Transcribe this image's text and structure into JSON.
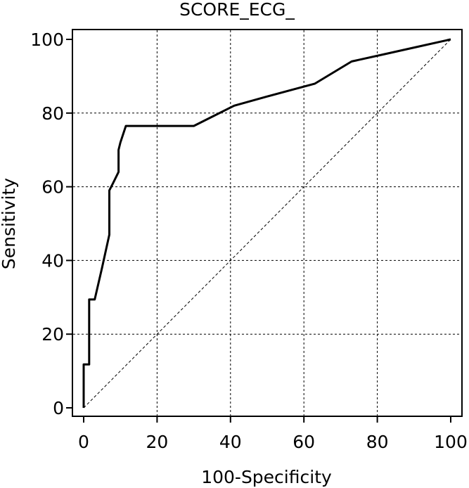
{
  "chart_data": {
    "type": "line",
    "title": "SCORE_ECG_",
    "xlabel": "100-Specificity",
    "ylabel": "Sensitivity",
    "xlim": [
      0,
      100
    ],
    "ylim": [
      0,
      100
    ],
    "x_ticks": [
      "0",
      "20",
      "40",
      "60",
      "80",
      "100"
    ],
    "y_ticks": [
      "0",
      "20",
      "40",
      "60",
      "80",
      "100"
    ],
    "grid": true,
    "series": [
      {
        "x": [
          0,
          0,
          1.5,
          1.5,
          3,
          5,
          7,
          7,
          8,
          9.5,
          9.5,
          10,
          11.5,
          30,
          35,
          41,
          50,
          63,
          73,
          82,
          91,
          100
        ],
        "y": [
          0,
          11.8,
          11.8,
          29.4,
          29.4,
          38,
          47,
          59,
          61,
          64,
          70,
          72,
          76.5,
          76.5,
          79,
          82,
          84.5,
          88,
          94,
          96,
          98,
          100
        ]
      },
      {
        "x": [
          0,
          100
        ],
        "y": [
          0,
          100
        ],
        "style": "dashed"
      }
    ]
  }
}
